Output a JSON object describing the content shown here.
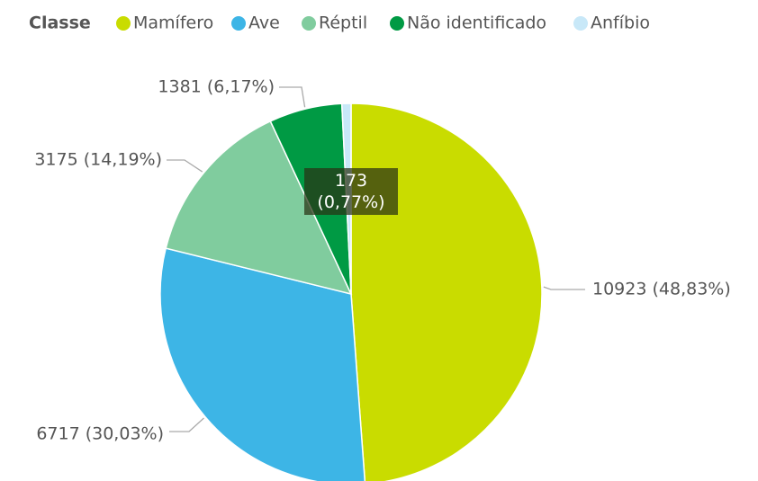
{
  "chart_data": {
    "type": "pie",
    "legend_title": "Classe",
    "categories": [
      "Mamífero",
      "Ave",
      "Réptil",
      "Não identificado",
      "Anfíbio"
    ],
    "values": [
      10923,
      6717,
      3175,
      1381,
      173
    ],
    "value_labels": [
      "10923 (48,83%)",
      "6717 (30,03%)",
      "3175 (14,19%)",
      "1381 (6,17%)",
      "173 (0,77%)"
    ],
    "colors": [
      "#c9dc00",
      "#3db5e6",
      "#80cc9e",
      "#009a44",
      "#c8e8f8"
    ],
    "legend": "top-left"
  }
}
